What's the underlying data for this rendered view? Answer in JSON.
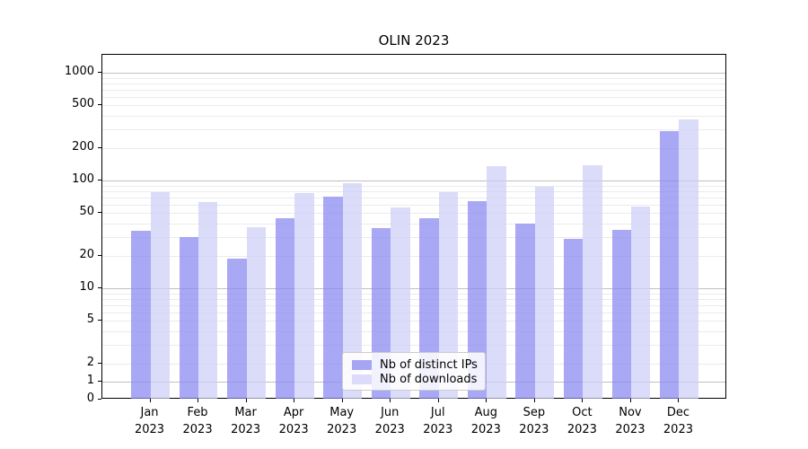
{
  "title": "OLIN 2023",
  "chart_data": {
    "type": "bar",
    "title": "OLIN 2023",
    "y_scale": "symlog (logarithmic above 2, linear from 0 to 2)",
    "y_ticks": [
      0,
      1,
      2,
      5,
      10,
      20,
      50,
      100,
      200,
      500,
      1000
    ],
    "ylim": [
      0,
      1500
    ],
    "grid": "horizontal major and minor gridlines",
    "legend_position": "lower center",
    "categories": [
      "Jan 2023",
      "Feb 2023",
      "Mar 2023",
      "Apr 2023",
      "May 2023",
      "Jun 2023",
      "Jul 2023",
      "Aug 2023",
      "Sep 2023",
      "Oct 2023",
      "Nov 2023",
      "Dec 2023"
    ],
    "series": [
      {
        "name": "Nb of distinct IPs",
        "key": "distinct-ips",
        "swatch_color": "#a5a5f2",
        "bar_color": "rgba(134,134,240,0.72)",
        "values": [
          34,
          30,
          19,
          45,
          71,
          36,
          45,
          65,
          40,
          29,
          35,
          290
        ]
      },
      {
        "name": "Nb of downloads",
        "key": "downloads",
        "swatch_color": "#dcdcfa",
        "bar_color": "rgba(205,205,248,0.72)",
        "values": [
          78,
          63,
          37,
          76,
          94,
          56,
          78,
          135,
          88,
          139,
          57,
          368
        ]
      }
    ]
  }
}
